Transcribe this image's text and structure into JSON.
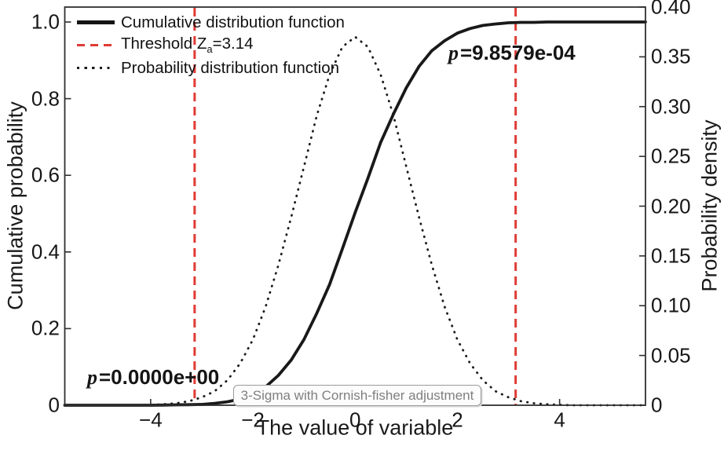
{
  "figure": {
    "background": "#ffffff",
    "xlabel": "The value of variable",
    "ylabel_left": "Cumulative probability",
    "ylabel_right": "Probability density"
  },
  "legend": {
    "position": "upper-left",
    "items": [
      {
        "swatch": "solid-black-line",
        "label": "Cumulative distribution function"
      },
      {
        "swatch": "red-dashed-line",
        "label_prefix": "Threshold Z",
        "label_sub": "a",
        "label_suffix": "=3.14"
      },
      {
        "swatch": "dotted-black-line",
        "label": "Probability distribution function"
      }
    ]
  },
  "annotations": {
    "p_left": {
      "var": "p",
      "text": "=0.0000e+00"
    },
    "p_right": {
      "var": "p",
      "text": "=9.8579e-04"
    },
    "method_box": {
      "label": "3-Sigma with Cornish-fisher adjustment"
    }
  },
  "colors": {
    "curve_black": "#191919",
    "threshold_red": "#e03b35",
    "axis_stroke": "#2f2f2f",
    "box_border_gray": "#9b9b9b",
    "box_text_gray": "#7f7f7f"
  },
  "chart_data": {
    "type": "line",
    "title": "",
    "xlabel": "The value of variable",
    "ylabel_left": "Cumulative probability",
    "ylabel_right": "Probability density",
    "grid": false,
    "legend_position": "upper-left",
    "x_range": [
      -5.68,
      5.68
    ],
    "y_left_range": [
      0,
      1.039
    ],
    "y_right_range": [
      0,
      0.4
    ],
    "x_ticks": {
      "values": [
        -4,
        -2,
        0,
        2,
        4
      ],
      "labels": [
        "−4",
        "−2",
        "0",
        "2",
        "4"
      ]
    },
    "y_left_ticks": {
      "values": [
        1.0,
        0.8,
        0.6,
        0.4,
        0.2,
        0
      ],
      "labels": [
        "1.0",
        "0.8",
        "0.6",
        "0.4",
        "0.2",
        "0"
      ]
    },
    "y_right_ticks": {
      "values": [
        0.4,
        0.35,
        0.3,
        0.25,
        0.2,
        0.15,
        0.1,
        0.05,
        0
      ],
      "labels": [
        "0.40",
        "0.35",
        "0.30",
        "0.25",
        "0.20",
        "0.15",
        "0.10",
        "0.05",
        "0"
      ]
    },
    "x_samples": [
      -5.68,
      -5.25,
      -5,
      -4.75,
      -4.5,
      -4.25,
      -4,
      -3.75,
      -3.5,
      -3.25,
      -3,
      -2.75,
      -2.5,
      -2.25,
      -2,
      -1.75,
      -1.5,
      -1.25,
      -1,
      -0.75,
      -0.5,
      -0.25,
      0,
      0.25,
      0.5,
      0.75,
      1,
      1.25,
      1.5,
      1.75,
      2,
      2.25,
      2.5,
      2.75,
      3,
      3.25,
      3.5,
      3.75,
      4,
      4.25,
      4.5,
      4.75,
      5,
      5.25,
      5.5,
      5.68
    ],
    "series": [
      {
        "name": "Cumulative distribution function",
        "axis": "left",
        "style": "solid",
        "color": "#191919",
        "values": [
          0,
          0,
          0,
          0,
          0,
          0,
          0,
          0.0005,
          0.001,
          0.0015,
          0.002,
          0.005,
          0.009,
          0.016,
          0.029,
          0.048,
          0.078,
          0.118,
          0.172,
          0.24,
          0.315,
          0.408,
          0.503,
          0.592,
          0.686,
          0.76,
          0.828,
          0.884,
          0.925,
          0.951,
          0.971,
          0.983,
          0.991,
          0.995,
          0.998,
          0.999,
          0.999,
          1,
          1,
          1,
          1,
          1,
          1,
          1,
          1,
          1
        ]
      },
      {
        "name": "Probability distribution function",
        "axis": "right",
        "style": "dotted",
        "color": "#1c1c1c",
        "values": [
          0,
          0,
          0,
          0,
          0,
          0,
          0.0004,
          0.001,
          0.002,
          0.004,
          0.008,
          0.014,
          0.025,
          0.042,
          0.066,
          0.099,
          0.141,
          0.189,
          0.24,
          0.291,
          0.332,
          0.36,
          0.37,
          0.36,
          0.332,
          0.291,
          0.24,
          0.189,
          0.141,
          0.099,
          0.066,
          0.042,
          0.025,
          0.014,
          0.008,
          0.004,
          0.002,
          0.001,
          0.0004,
          0,
          0,
          0,
          0,
          0,
          0,
          0
        ]
      }
    ],
    "thresholds": {
      "name": "Threshold Za=3.14",
      "style": "dashed",
      "color": "#e03b35",
      "x_values": [
        -3.14,
        3.14
      ]
    },
    "annotations": [
      {
        "text": "p=0.0000e+00",
        "x": -4.6,
        "y_left": 0.07
      },
      {
        "text": "p=9.8579e-04",
        "x": 2.4,
        "y_left": 0.92
      },
      {
        "text": "3-Sigma with Cornish-fisher adjustment",
        "x": 0,
        "y_left": 0.02
      }
    ]
  }
}
